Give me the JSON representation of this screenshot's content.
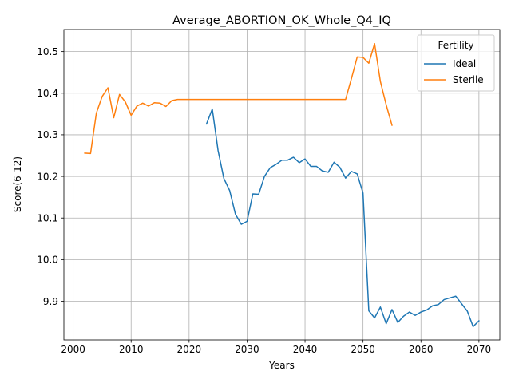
{
  "chart_data": {
    "type": "line",
    "title": "Average_ABORTION_OK_Whole_Q4_IQ",
    "xlabel": "Years",
    "ylabel": "Score(6-12)",
    "xlim": [
      1998.4,
      2073.6
    ],
    "ylim": [
      9.807,
      10.553
    ],
    "xticks": [
      2000,
      2010,
      2020,
      2030,
      2040,
      2050,
      2060,
      2070
    ],
    "xtick_labels": [
      "2000",
      "2010",
      "2020",
      "2030",
      "2040",
      "2050",
      "2060",
      "2070"
    ],
    "yticks": [
      9.9,
      10.0,
      10.1,
      10.2,
      10.3,
      10.4,
      10.5
    ],
    "ytick_labels": [
      "9.9",
      "10.0",
      "10.1",
      "10.2",
      "10.3",
      "10.4",
      "10.5"
    ],
    "grid": true,
    "legend": {
      "title": "Fertility",
      "position": "top-right"
    },
    "series": [
      {
        "name": "Ideal",
        "color": "#1f77b4",
        "x": [
          2023,
          2024,
          2025,
          2026,
          2027,
          2028,
          2029,
          2030,
          2031,
          2032,
          2033,
          2034,
          2035,
          2036,
          2037,
          2038,
          2039,
          2040,
          2041,
          2042,
          2043,
          2044,
          2045,
          2046,
          2047,
          2048,
          2049,
          2050,
          2051,
          2052,
          2053,
          2054,
          2055,
          2056,
          2057,
          2058,
          2059,
          2060,
          2061,
          2062,
          2063,
          2064,
          2065,
          2066,
          2067,
          2068,
          2069,
          2070
        ],
        "y": [
          10.326,
          10.362,
          10.262,
          10.195,
          10.166,
          10.109,
          10.085,
          10.092,
          10.158,
          10.157,
          10.2,
          10.221,
          10.229,
          10.239,
          10.239,
          10.246,
          10.233,
          10.242,
          10.224,
          10.224,
          10.213,
          10.21,
          10.234,
          10.222,
          10.196,
          10.212,
          10.206,
          10.16,
          9.877,
          9.86,
          9.886,
          9.846,
          9.88,
          9.849,
          9.864,
          9.874,
          9.866,
          9.874,
          9.879,
          9.889,
          9.892,
          9.904,
          9.908,
          9.912,
          9.894,
          9.876,
          9.839,
          9.853
        ]
      },
      {
        "name": "Sterile",
        "color": "#ff7f0e",
        "x": [
          2002,
          2003,
          2004,
          2005,
          2006,
          2007,
          2008,
          2009,
          2010,
          2011,
          2012,
          2013,
          2014,
          2015,
          2016,
          2017,
          2018,
          2019,
          2020,
          2025,
          2030,
          2035,
          2040,
          2045,
          2046,
          2047,
          2048,
          2049,
          2050,
          2051,
          2052,
          2053,
          2054,
          2055
        ],
        "y": [
          10.256,
          10.255,
          10.352,
          10.392,
          10.413,
          10.341,
          10.397,
          10.379,
          10.347,
          10.369,
          10.376,
          10.369,
          10.377,
          10.376,
          10.368,
          10.382,
          10.385,
          10.385,
          10.385,
          10.385,
          10.385,
          10.385,
          10.385,
          10.385,
          10.385,
          10.385,
          10.435,
          10.487,
          10.486,
          10.472,
          10.519,
          10.428,
          10.372,
          10.323
        ]
      }
    ]
  }
}
